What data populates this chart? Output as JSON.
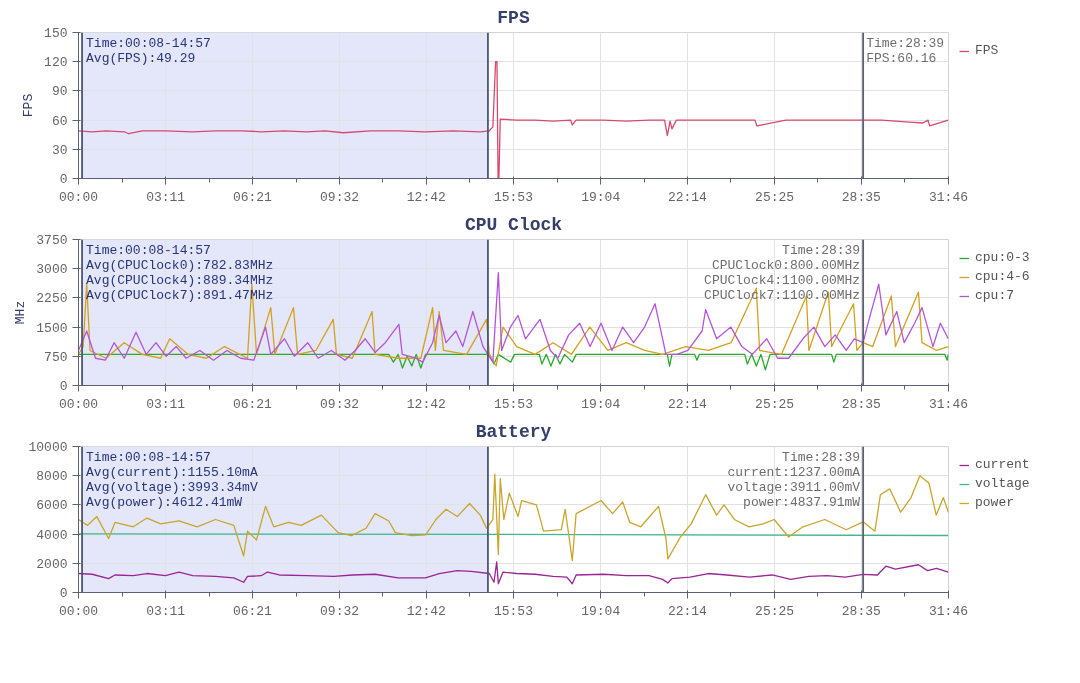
{
  "chart_data": [
    {
      "type": "line",
      "title": "FPS",
      "ylabel": "FPS",
      "xlim": [
        0,
        31.767
      ],
      "xticks": [
        {
          "value": 0,
          "label": "00:00"
        },
        {
          "value": 1.592,
          "label": null
        },
        {
          "value": 3.183,
          "label": "03:11"
        },
        {
          "value": 4.767,
          "label": null
        },
        {
          "value": 6.35,
          "label": "06:21"
        },
        {
          "value": 7.942,
          "label": null
        },
        {
          "value": 9.533,
          "label": "09:32"
        },
        {
          "value": 11.117,
          "label": null
        },
        {
          "value": 12.7,
          "label": "12:42"
        },
        {
          "value": 14.292,
          "label": null
        },
        {
          "value": 15.883,
          "label": "15:53"
        },
        {
          "value": 17.475,
          "label": null
        },
        {
          "value": 19.067,
          "label": "19:04"
        },
        {
          "value": 20.65,
          "label": null
        },
        {
          "value": 22.233,
          "label": "22:14"
        },
        {
          "value": 23.825,
          "label": null
        },
        {
          "value": 25.417,
          "label": "25:25"
        },
        {
          "value": 27,
          "label": null
        },
        {
          "value": 28.583,
          "label": "28:35"
        },
        {
          "value": 30.175,
          "label": null
        },
        {
          "value": 31.767,
          "label": "31:46"
        }
      ],
      "ylim": [
        0,
        150
      ],
      "yticks": [
        0,
        30,
        60,
        90,
        120,
        150
      ],
      "grid": true,
      "legend": "top right",
      "series": [
        {
          "name": "FPS",
          "color": "#d64a6e",
          "x": [
            0,
            0.5,
            1,
            1.67,
            1.83,
            2.33,
            3.17,
            4.17,
            5,
            6,
            6.67,
            7.5,
            8.33,
            9,
            9.67,
            10.67,
            11.67,
            12.67,
            13.67,
            14.67,
            15,
            15.13,
            15.23,
            15.28,
            15.32,
            15.35,
            15.4,
            16,
            16.67,
            17.33,
            17.97,
            18.03,
            18.17,
            19.17,
            20,
            20.83,
            21.4,
            21.5,
            21.6,
            21.67,
            21.83,
            22.83,
            23.67,
            24.7,
            24.77,
            25.83,
            26.67,
            27.5,
            28.33,
            28.65,
            29.33,
            30.33,
            30.83,
            31.02,
            31.08,
            31.76
          ],
          "values": [
            49,
            48,
            49,
            48,
            46,
            49,
            49,
            48,
            49,
            49,
            48,
            49,
            48,
            49,
            47,
            49,
            49,
            48,
            49,
            48,
            49,
            53,
            120,
            120,
            0,
            0,
            61,
            60,
            60,
            59,
            60,
            55,
            60,
            60,
            59,
            60,
            60,
            44,
            59,
            51,
            60,
            60,
            60,
            60,
            54,
            60,
            60,
            60,
            60,
            60,
            60,
            58,
            57,
            60,
            54,
            60
          ]
        }
      ],
      "bands": [
        {
          "axis": "x",
          "from": 0.13,
          "to": 14.95,
          "color": "#e4e6fa",
          "label": "Time:00:08-14:57\nAvg(FPS):49.29"
        }
      ],
      "ref_lines": [
        {
          "axis": "x",
          "value": 0.13,
          "color": "#4c5675"
        },
        {
          "axis": "x",
          "value": 14.95,
          "color": "#4c5675"
        },
        {
          "axis": "x",
          "value": 28.65,
          "color": "#5a6070"
        }
      ],
      "annotations": [
        "Time:28:39\nFPS:60.16"
      ]
    },
    {
      "type": "line",
      "title": "CPU Clock",
      "ylabel": "MHz",
      "xlim": [
        0,
        31.767
      ],
      "xticks": [
        {
          "value": 0,
          "label": "00:00"
        },
        {
          "value": 1.592,
          "label": null
        },
        {
          "value": 3.183,
          "label": "03:11"
        },
        {
          "value": 4.767,
          "label": null
        },
        {
          "value": 6.35,
          "label": "06:21"
        },
        {
          "value": 7.942,
          "label": null
        },
        {
          "value": 9.533,
          "label": "09:32"
        },
        {
          "value": 11.117,
          "label": null
        },
        {
          "value": 12.7,
          "label": "12:42"
        },
        {
          "value": 14.292,
          "label": null
        },
        {
          "value": 15.883,
          "label": "15:53"
        },
        {
          "value": 17.475,
          "label": null
        },
        {
          "value": 19.067,
          "label": "19:04"
        },
        {
          "value": 20.65,
          "label": null
        },
        {
          "value": 22.233,
          "label": "22:14"
        },
        {
          "value": 23.825,
          "label": null
        },
        {
          "value": 25.417,
          "label": "25:25"
        },
        {
          "value": 27,
          "label": null
        },
        {
          "value": 28.583,
          "label": "28:35"
        },
        {
          "value": 30.175,
          "label": null
        },
        {
          "value": 31.767,
          "label": "31:46"
        }
      ],
      "ylim": [
        0,
        3750
      ],
      "yticks": [
        0,
        750,
        1500,
        2250,
        3000,
        3750
      ],
      "grid": true,
      "legend": "top right",
      "series": [
        {
          "name": "cpu:0-3",
          "color": "#2ca82c",
          "x": [
            0,
            11.33,
            11.5,
            11.67,
            11.83,
            12,
            12.17,
            12.33,
            12.5,
            12.67,
            15,
            15.17,
            15.33,
            15.78,
            15.92,
            16.83,
            16.92,
            17.08,
            17.25,
            17.42,
            17.58,
            17.75,
            18.03,
            18.17,
            21.5,
            21.58,
            21.67,
            22.5,
            22.58,
            22.67,
            24.33,
            24.42,
            24.58,
            24.75,
            24.92,
            25.08,
            25.25,
            27.5,
            27.58,
            27.67,
            28.65,
            31.63,
            31.72,
            31.76
          ],
          "values": [
            800,
            800,
            600,
            800,
            450,
            750,
            500,
            800,
            450,
            800,
            800,
            550,
            800,
            600,
            800,
            800,
            550,
            800,
            500,
            800,
            550,
            800,
            600,
            800,
            800,
            500,
            800,
            800,
            650,
            800,
            800,
            550,
            800,
            500,
            800,
            400,
            800,
            800,
            600,
            800,
            800,
            800,
            650,
            800
          ]
        },
        {
          "name": "cpu:4-6",
          "color": "#d4a020",
          "x": [
            0,
            0.17,
            0.3,
            0.42,
            1,
            1.67,
            2.33,
            3,
            3.33,
            4,
            4.67,
            5.33,
            6.17,
            6.33,
            6.5,
            7.02,
            7.17,
            7.85,
            8,
            8.67,
            9.3,
            9.42,
            10,
            10.72,
            10.83,
            11.67,
            12.5,
            12.93,
            13.03,
            13.17,
            13.33,
            14.17,
            14.9,
            15,
            15.25,
            15.5,
            16,
            16.67,
            17.33,
            18,
            18.67,
            19.33,
            20,
            20.67,
            21.33,
            22.17,
            23,
            23.83,
            24.75,
            24.87,
            25.67,
            26.58,
            26.67,
            27.38,
            27.5,
            28.3,
            28.42,
            28.65,
            29,
            29.68,
            29.83,
            30.67,
            30.8,
            31.33,
            31.76
          ],
          "values": [
            800,
            1000,
            2600,
            900,
            700,
            1100,
            800,
            700,
            1200,
            800,
            700,
            1000,
            700,
            2600,
            800,
            2000,
            800,
            2000,
            800,
            900,
            1700,
            800,
            700,
            1900,
            800,
            700,
            700,
            2000,
            900,
            1900,
            900,
            800,
            1700,
            800,
            500,
            1500,
            1000,
            800,
            1100,
            800,
            1500,
            900,
            1100,
            900,
            800,
            1000,
            900,
            1100,
            2500,
            900,
            800,
            2300,
            900,
            2400,
            1000,
            2100,
            900,
            1100,
            1000,
            2300,
            1000,
            2400,
            1100,
            900,
            1000
          ]
        },
        {
          "name": "cpu:7",
          "color": "#b455d8",
          "x": [
            0,
            0.3,
            0.62,
            0.98,
            1.3,
            1.67,
            2.1,
            2.47,
            2.83,
            3.2,
            3.57,
            3.93,
            4.43,
            4.93,
            5.42,
            5.92,
            6.4,
            6.83,
            7.02,
            7.52,
            7.88,
            8.37,
            8.75,
            9.23,
            9.73,
            10.1,
            10.47,
            10.83,
            11.2,
            11.7,
            11.82,
            12.32,
            12.57,
            12.93,
            13.17,
            13.42,
            13.78,
            14.03,
            14.4,
            14.77,
            15.13,
            15.33,
            15.45,
            15.77,
            16.05,
            16.32,
            16.85,
            17.23,
            17.5,
            17.9,
            18.3,
            18.68,
            19.08,
            19.48,
            19.87,
            20.27,
            20.67,
            21.05,
            21.45,
            21.85,
            22.25,
            22.77,
            22.9,
            23.3,
            23.82,
            24.22,
            24.6,
            25.13,
            25.53,
            25.93,
            26.45,
            26.85,
            27.25,
            27.63,
            28.03,
            28.33,
            28.65,
            28.83,
            29.22,
            29.48,
            29.88,
            30.15,
            30.53,
            30.8,
            31.2,
            31.47,
            31.76
          ],
          "values": [
            900,
            1400,
            700,
            650,
            1100,
            700,
            1370,
            800,
            1100,
            750,
            1000,
            700,
            900,
            650,
            900,
            700,
            650,
            1500,
            800,
            1200,
            750,
            1100,
            700,
            900,
            650,
            900,
            1200,
            850,
            1100,
            1570,
            800,
            700,
            600,
            1100,
            1800,
            1100,
            1400,
            1000,
            1900,
            1000,
            600,
            2900,
            900,
            1500,
            1800,
            1200,
            1700,
            900,
            700,
            1300,
            1600,
            1000,
            1600,
            900,
            1500,
            1100,
            1500,
            2100,
            800,
            800,
            900,
            1400,
            1950,
            1200,
            1500,
            1000,
            800,
            1200,
            700,
            700,
            1200,
            1500,
            1000,
            1300,
            900,
            1200,
            1100,
            1600,
            2600,
            1300,
            1900,
            1100,
            1600,
            2000,
            1000,
            1600,
            1200
          ]
        }
      ],
      "bands": [
        {
          "axis": "x",
          "from": 0.13,
          "to": 14.95,
          "color": "#e4e6fa",
          "label": "Time:00:08-14:57\nAvg(CPUClock0):782.83MHz\nAvg(CPUClock4):889.34MHz\nAvg(CPUClock7):891.47MHz"
        }
      ],
      "ref_lines": [
        {
          "axis": "x",
          "value": 0.13,
          "color": "#4c5675"
        },
        {
          "axis": "x",
          "value": 14.95,
          "color": "#4c5675"
        },
        {
          "axis": "x",
          "value": 28.65,
          "color": "#5a6070"
        }
      ],
      "annotations": [
        "Time:28:39\nCPUClock0:800.00MHz\nCPUClock4:1100.00MHz\nCPUClock7:1100.00MHz"
      ]
    },
    {
      "type": "line",
      "title": "Battery",
      "xlim": [
        0,
        31.767
      ],
      "xticks": [
        {
          "value": 0,
          "label": "00:00"
        },
        {
          "value": 1.592,
          "label": null
        },
        {
          "value": 3.183,
          "label": "03:11"
        },
        {
          "value": 4.767,
          "label": null
        },
        {
          "value": 6.35,
          "label": "06:21"
        },
        {
          "value": 7.942,
          "label": null
        },
        {
          "value": 9.533,
          "label": "09:32"
        },
        {
          "value": 11.117,
          "label": null
        },
        {
          "value": 12.7,
          "label": "12:42"
        },
        {
          "value": 14.292,
          "label": null
        },
        {
          "value": 15.883,
          "label": "15:53"
        },
        {
          "value": 17.475,
          "label": null
        },
        {
          "value": 19.067,
          "label": "19:04"
        },
        {
          "value": 20.65,
          "label": null
        },
        {
          "value": 22.233,
          "label": "22:14"
        },
        {
          "value": 23.825,
          "label": null
        },
        {
          "value": 25.417,
          "label": "25:25"
        },
        {
          "value": 27,
          "label": null
        },
        {
          "value": 28.583,
          "label": "28:35"
        },
        {
          "value": 30.175,
          "label": null
        },
        {
          "value": 31.767,
          "label": "31:46"
        }
      ],
      "ylim": [
        0,
        10000
      ],
      "yticks": [
        0,
        2000,
        4000,
        6000,
        8000,
        10000
      ],
      "grid": true,
      "legend": "top right",
      "series": [
        {
          "name": "current",
          "color": "#9b2594",
          "x": [
            0,
            0.5,
            1.1,
            1.33,
            2,
            2.5,
            3.17,
            3.67,
            4.17,
            5,
            5.67,
            6.03,
            6.17,
            6.67,
            6.9,
            7.33,
            8.33,
            9.33,
            10,
            10.83,
            11.67,
            12.67,
            13.17,
            13.83,
            14.33,
            15,
            15.17,
            15.27,
            15.33,
            15.5,
            16,
            16.67,
            17.33,
            17.83,
            18.03,
            18.17,
            19.17,
            20,
            20.83,
            21.33,
            21.52,
            21.67,
            22.33,
            23,
            23.67,
            24.5,
            25.33,
            26,
            26.67,
            27.33,
            28,
            28.65,
            29.17,
            29.48,
            29.83,
            30.67,
            31,
            31.33,
            31.76
          ],
          "values": [
            1300,
            1250,
            950,
            1200,
            1150,
            1300,
            1150,
            1400,
            1150,
            1100,
            1000,
            700,
            1100,
            1150,
            1400,
            1200,
            1150,
            1100,
            1200,
            1250,
            1000,
            1000,
            1300,
            1500,
            1450,
            1300,
            700,
            2100,
            600,
            1400,
            1300,
            1250,
            1100,
            1050,
            600,
            1200,
            1250,
            1150,
            1150,
            900,
            650,
            950,
            1050,
            1300,
            1200,
            1050,
            1200,
            900,
            1100,
            1150,
            1050,
            1240,
            1200,
            1800,
            1600,
            1900,
            1500,
            1650,
            1400
          ]
        },
        {
          "name": "voltage",
          "color": "#3cb88c",
          "x": [
            0,
            15,
            21.67,
            28.65,
            31.76
          ],
          "values": [
            4010,
            3980,
            3950,
            3910,
            3900
          ]
        },
        {
          "name": "power",
          "color": "#c9a52c",
          "x": [
            0,
            0.33,
            0.67,
            1.1,
            1.33,
            2,
            2.5,
            3,
            3.67,
            4.33,
            5,
            5.67,
            6.03,
            6.17,
            6.5,
            6.83,
            7.13,
            7.67,
            8.13,
            8.87,
            9.48,
            9.97,
            10.5,
            10.83,
            11.33,
            11.57,
            12.17,
            12.68,
            13.05,
            13.42,
            13.83,
            14.28,
            14.67,
            14.9,
            15.13,
            15.2,
            15.33,
            15.4,
            15.53,
            15.73,
            16.05,
            16.18,
            16.72,
            16.98,
            17.63,
            17.77,
            18.03,
            18.17,
            19.08,
            19.5,
            19.87,
            20.13,
            20.53,
            21.18,
            21.45,
            21.52,
            21.98,
            22.37,
            22.9,
            23.3,
            23.57,
            23.95,
            24.48,
            25,
            25.4,
            25.93,
            26.45,
            27.25,
            28.03,
            28.65,
            29.08,
            29.28,
            29.62,
            30.02,
            30.4,
            30.72,
            31.05,
            31.32,
            31.58,
            31.76
          ],
          "values": [
            5000,
            4600,
            5200,
            3700,
            4800,
            4500,
            5100,
            4700,
            4900,
            4500,
            5000,
            4600,
            2500,
            4200,
            3600,
            5900,
            4500,
            4800,
            4600,
            5300,
            4100,
            3900,
            4400,
            5400,
            4900,
            4100,
            3900,
            3950,
            5000,
            5700,
            5200,
            6100,
            5300,
            4400,
            5000,
            8100,
            2600,
            7800,
            5000,
            6800,
            5200,
            6300,
            6000,
            4200,
            4300,
            5700,
            2200,
            5400,
            6300,
            5400,
            6200,
            4800,
            4500,
            5900,
            3700,
            2300,
            3800,
            4700,
            6700,
            5300,
            6000,
            5000,
            4500,
            4700,
            5000,
            3800,
            4500,
            5000,
            4300,
            4840,
            4200,
            6700,
            7100,
            5500,
            6500,
            8000,
            7500,
            5300,
            6500,
            5500
          ]
        }
      ],
      "bands": [
        {
          "axis": "x",
          "from": 0.13,
          "to": 14.95,
          "color": "#e4e6fa",
          "label": "Time:00:08-14:57\nAvg(current):1155.10mA\nAvg(voltage):3993.34mV\nAvg(power):4612.41mW"
        }
      ],
      "ref_lines": [
        {
          "axis": "x",
          "value": 0.13,
          "color": "#4c5675"
        },
        {
          "axis": "x",
          "value": 14.95,
          "color": "#4c5675"
        },
        {
          "axis": "x",
          "value": 28.65,
          "color": "#5a6070"
        }
      ],
      "annotations": [
        "Time:28:39\ncurrent:1237.00mA\nvoltage:3911.00mV\npower:4837.91mW"
      ]
    }
  ]
}
